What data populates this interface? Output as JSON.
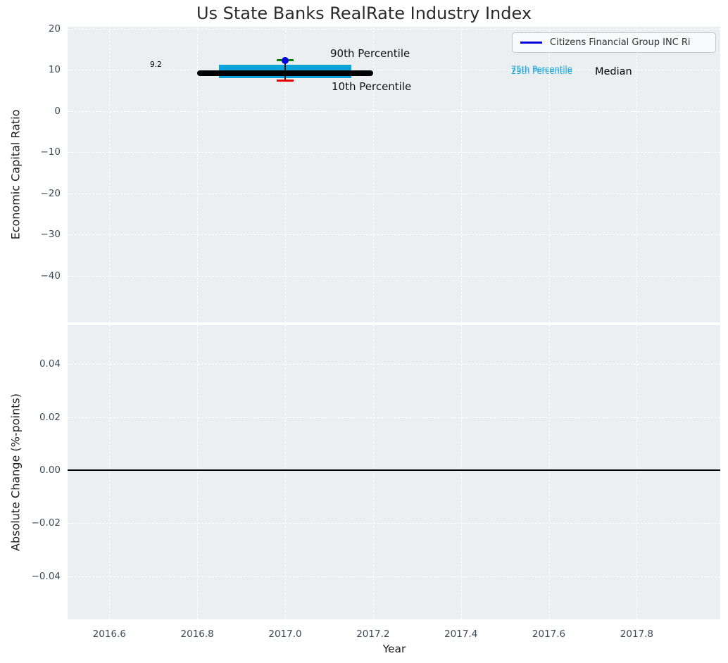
{
  "title": "Us State Banks RealRate Industry Index",
  "chart_data": [
    {
      "type": "boxplot",
      "subplot": "top",
      "title": "Us State Banks RealRate Industry Index",
      "ylabel": "Economic Capital Ratio",
      "xticks": [
        2016.6,
        2016.8,
        2017.0,
        2017.2,
        2017.4,
        2017.6,
        2017.8
      ],
      "xtick_labels": [
        "2016.6",
        "2016.8",
        "2017.0",
        "2017.2",
        "2017.4",
        "2017.6",
        "2017.8"
      ],
      "yticks": [
        20,
        10,
        0,
        -10,
        -20,
        -30,
        -40
      ],
      "ytick_labels": [
        "20",
        "10",
        "0",
        "−10",
        "−20",
        "−30",
        "−40"
      ],
      "xlim": [
        2016.505,
        2017.99
      ],
      "ylim": [
        -51.3,
        20.5
      ],
      "grid": {
        "style": "dashed",
        "color": "#ffffff",
        "background": "#ebeff1"
      },
      "legend": {
        "position": "upper right",
        "label": "Citizens Financial Group INC Ri",
        "line_color": "#0000e0"
      },
      "series": {
        "year": 2017.0,
        "median": 9.2,
        "p25": 8.0,
        "p75": 11.3,
        "p10": 7.4,
        "p90": 12.3,
        "company_point": 12.3,
        "box_half_width_years": 0.15,
        "median_half_width_years": 0.2,
        "cap_half_width_years": 0.02
      },
      "annotations": {
        "median_value": "9.2",
        "p90_label": "90th Percentile",
        "p10_label": "10th Percentile",
        "p75_label": "75th Percentile",
        "p25_label": "25th Percentile",
        "median_label": "Median"
      },
      "colors": {
        "box": "#0ba3d9",
        "median_line": "#000000",
        "whisker_line": "#1a1a1a",
        "p90_cap": "#008000",
        "p10_cap": "#e8000b",
        "company_dot": "#0000e0",
        "percentile_text": "#1ba6d9"
      }
    },
    {
      "type": "line",
      "subplot": "bottom",
      "ylabel": "Absolute Change (%-points)",
      "xlabel": "Year",
      "xticks": [
        2016.6,
        2016.8,
        2017.0,
        2017.2,
        2017.4,
        2017.6,
        2017.8
      ],
      "xtick_labels": [
        "2016.6",
        "2016.8",
        "2017.0",
        "2017.2",
        "2017.4",
        "2017.6",
        "2017.8"
      ],
      "yticks": [
        0.04,
        0.02,
        0.0,
        -0.02,
        -0.04
      ],
      "ytick_labels": [
        "0.04",
        "0.02",
        "0.00",
        "−0.02",
        "−0.04"
      ],
      "xlim": [
        2016.505,
        2017.99
      ],
      "ylim": [
        -0.0562,
        0.0546
      ],
      "grid": {
        "style": "dashed",
        "color": "#ffffff",
        "background": "#ebeff1"
      },
      "zero_line": {
        "value": 0.0,
        "color": "#000000"
      },
      "values": []
    }
  ]
}
